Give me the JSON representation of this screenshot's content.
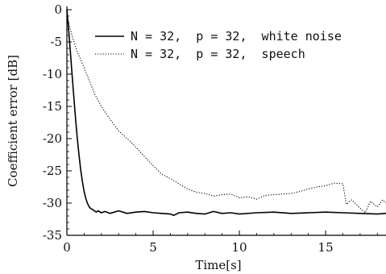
{
  "chart_data": {
    "type": "line",
    "title": "",
    "xlabel": "Time[s]",
    "ylabel": "Coefficient error [dB]",
    "xlim": [
      0,
      18.5
    ],
    "ylim": [
      -35,
      0.5
    ],
    "xticks": [
      0,
      5,
      10,
      15
    ],
    "xtick_labels": [
      "0",
      "5",
      "10",
      "15"
    ],
    "yticks": [
      0,
      -5,
      -10,
      -15,
      -20,
      -25,
      -30,
      -35
    ],
    "ytick_labels": [
      "0",
      "-5",
      "-10",
      "-15",
      "-20",
      "-25",
      "-30",
      "-35"
    ],
    "grid": false,
    "legend_position": "top-right",
    "series": [
      {
        "name": "N = 32,  p = 32,  white noise",
        "style": "solid",
        "color": "#000000",
        "x": [
          0.0,
          0.1,
          0.2,
          0.3,
          0.4,
          0.5,
          0.6,
          0.7,
          0.8,
          0.9,
          1.0,
          1.1,
          1.2,
          1.3,
          1.4,
          1.5,
          1.6,
          1.7,
          1.8,
          2.0,
          2.2,
          2.5,
          3.0,
          3.5,
          4.0,
          4.5,
          5.0,
          5.5,
          6.0,
          6.2,
          6.5,
          7.0,
          7.5,
          8.0,
          8.5,
          9.0,
          9.5,
          10.0,
          11.0,
          12.0,
          13.0,
          14.0,
          15.0,
          16.0,
          17.0,
          18.0,
          18.5
        ],
        "y": [
          0.0,
          -3.0,
          -6.5,
          -10.0,
          -13.5,
          -16.8,
          -19.8,
          -22.5,
          -24.8,
          -26.7,
          -28.2,
          -29.3,
          -30.1,
          -30.6,
          -30.9,
          -31.0,
          -31.2,
          -31.4,
          -31.2,
          -31.5,
          -31.3,
          -31.6,
          -31.2,
          -31.6,
          -31.4,
          -31.3,
          -31.5,
          -31.6,
          -31.7,
          -31.9,
          -31.5,
          -31.4,
          -31.6,
          -31.7,
          -31.3,
          -31.6,
          -31.5,
          -31.7,
          -31.5,
          -31.4,
          -31.6,
          -31.5,
          -31.4,
          -31.5,
          -31.6,
          -31.7,
          -31.6
        ]
      },
      {
        "name": "N = 32,  p = 32,  speech",
        "style": "dotted",
        "color": "#000000",
        "x": [
          0.0,
          0.3,
          0.6,
          1.0,
          1.3,
          1.6,
          2.0,
          2.5,
          3.0,
          3.5,
          4.0,
          4.5,
          5.0,
          5.5,
          6.0,
          6.5,
          7.0,
          7.5,
          8.0,
          8.5,
          9.0,
          9.5,
          10.0,
          10.5,
          11.0,
          11.5,
          12.0,
          12.5,
          13.0,
          13.5,
          14.0,
          14.5,
          15.0,
          15.5,
          16.0,
          16.2,
          16.5,
          17.0,
          17.3,
          17.6,
          18.0,
          18.3,
          18.5
        ],
        "y": [
          -1.0,
          -4.0,
          -6.5,
          -9.0,
          -11.0,
          -13.0,
          -15.0,
          -17.0,
          -18.8,
          -20.0,
          -21.3,
          -22.8,
          -24.2,
          -25.5,
          -26.2,
          -27.0,
          -27.8,
          -28.3,
          -28.5,
          -28.9,
          -28.7,
          -28.6,
          -29.2,
          -29.0,
          -29.4,
          -28.8,
          -28.7,
          -28.6,
          -28.5,
          -28.2,
          -27.8,
          -27.5,
          -27.3,
          -26.9,
          -27.0,
          -30.2,
          -29.5,
          -30.8,
          -31.5,
          -29.7,
          -30.6,
          -29.5,
          -30.0
        ]
      }
    ]
  }
}
